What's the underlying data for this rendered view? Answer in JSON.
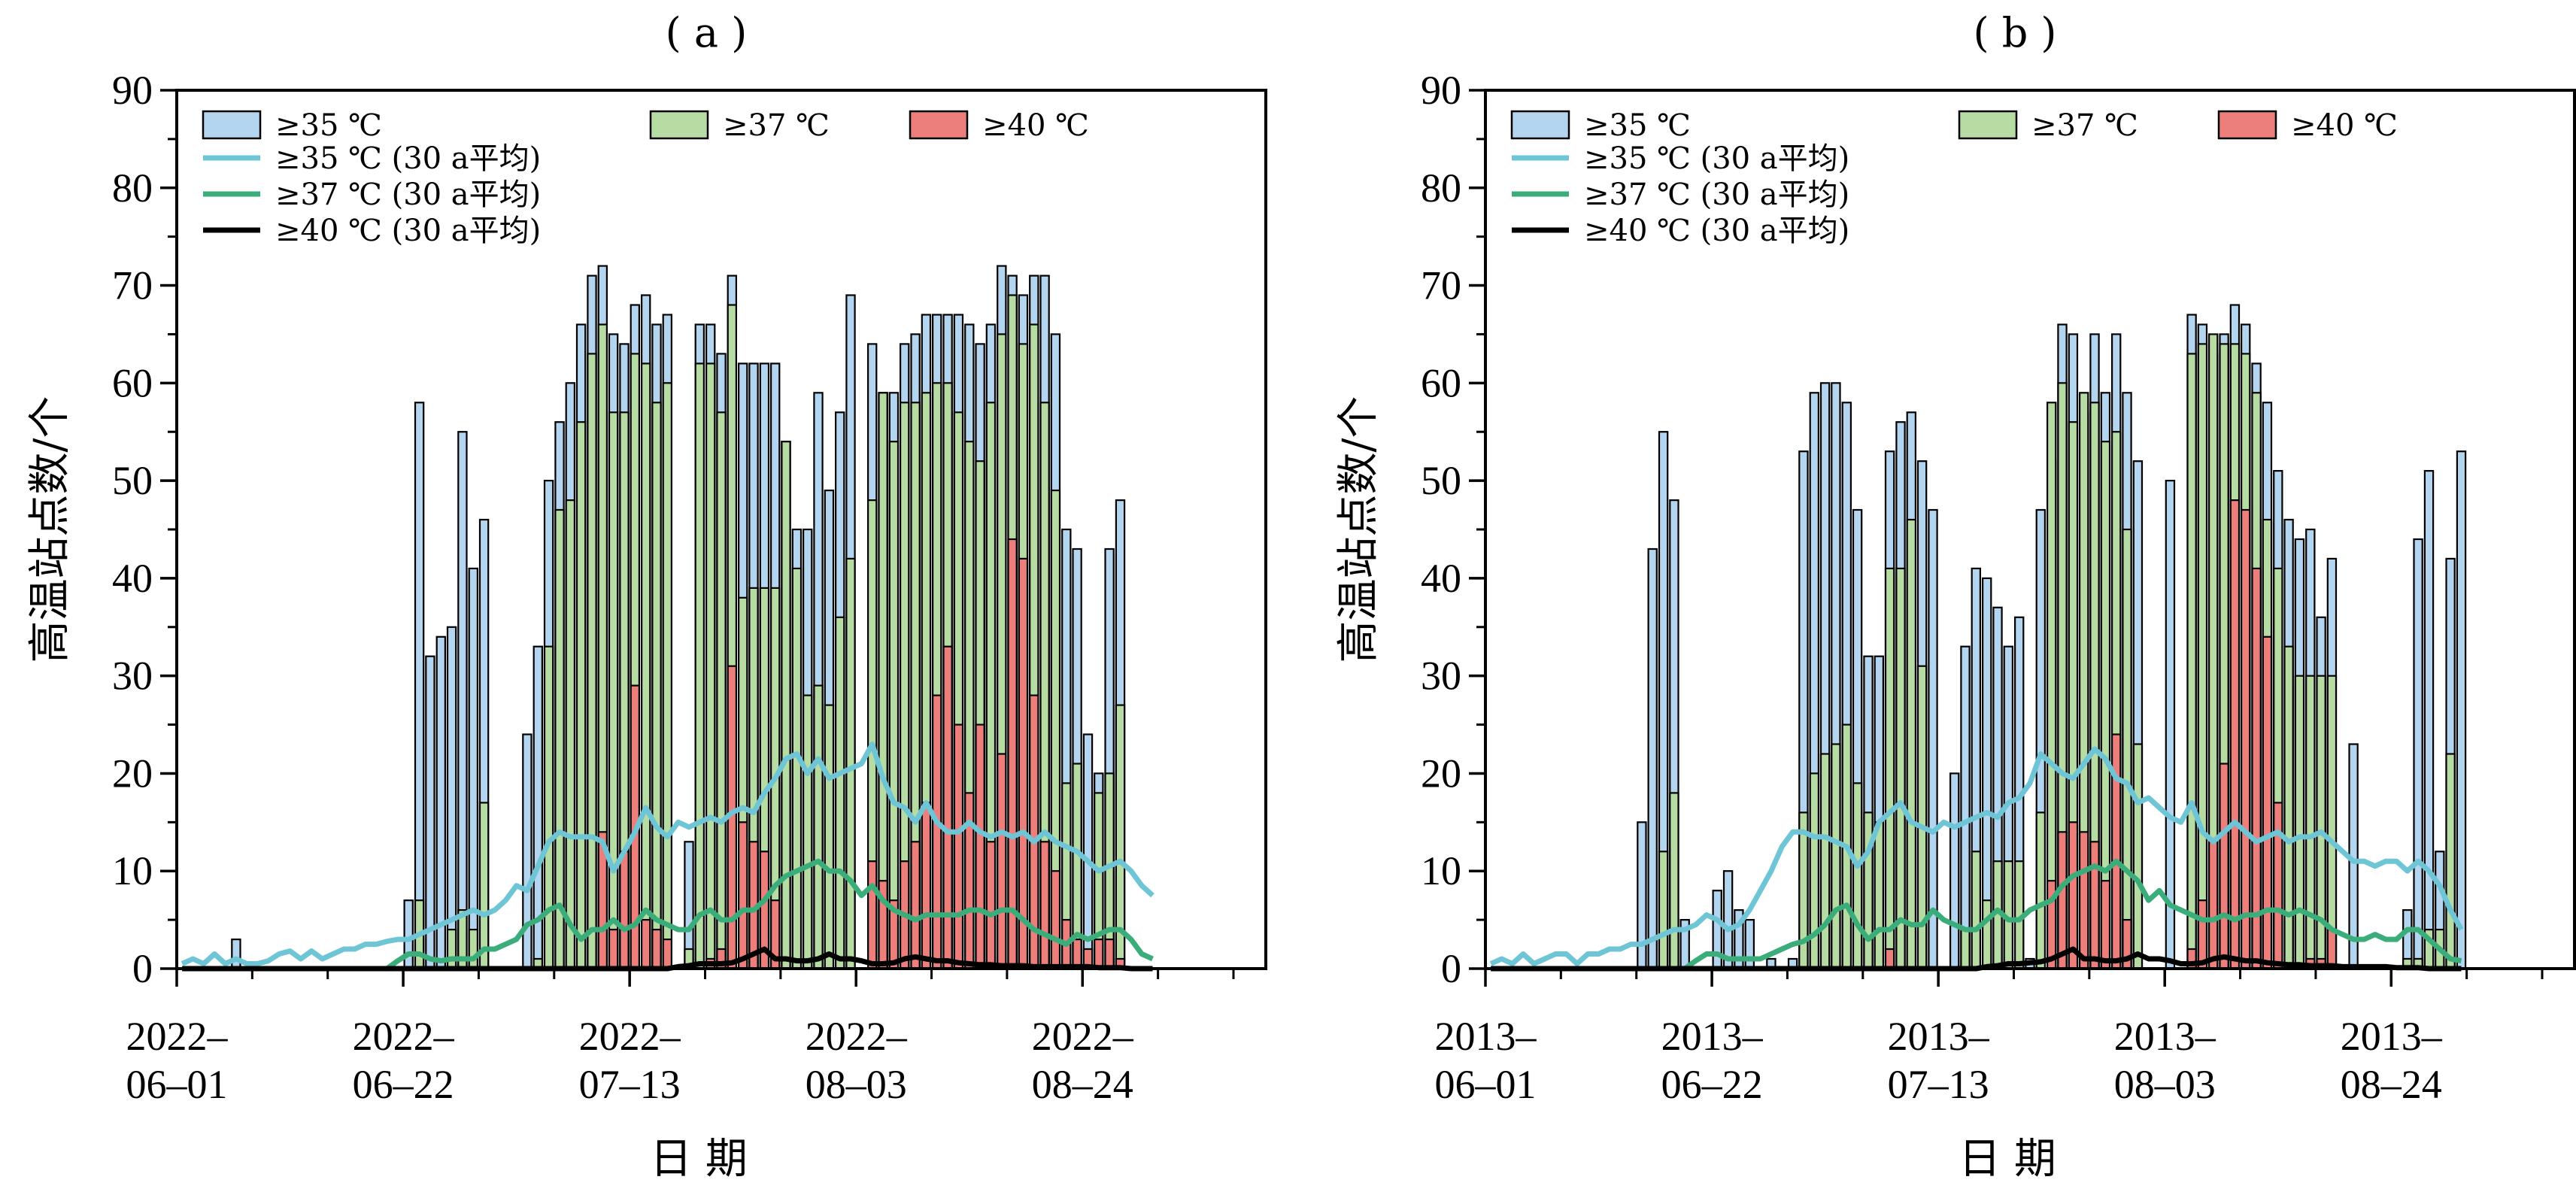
{
  "chart_data": [
    {
      "panel_label": "( a )",
      "type": "bar",
      "xlabel": "日 期",
      "ylabel": "高温站点数/个",
      "ylim": [
        0,
        90
      ],
      "yticks": [
        0,
        10,
        20,
        30,
        40,
        50,
        60,
        70,
        80,
        90
      ],
      "xticks": [
        {
          "day": 0,
          "line1": "2022–",
          "line2": "06–01"
        },
        {
          "day": 21,
          "line1": "2022–",
          "line2": "06–22"
        },
        {
          "day": 42,
          "line1": "2022–",
          "line2": "07–13"
        },
        {
          "day": 63,
          "line1": "2022–",
          "line2": "08–03"
        },
        {
          "day": 84,
          "line1": "2022–",
          "line2": "08–24"
        }
      ],
      "x_start": "2022-06-01",
      "x_end": "2022-08-31",
      "legend": {
        "ge35": "≥35 ℃",
        "ge37": "≥37 ℃",
        "ge40": "≥40 ℃",
        "avg35": "≥35 ℃ (30 a平均)",
        "avg37": "≥37 ℃ (30 a平均)",
        "avg40": "≥40 ℃ (30 a平均)"
      },
      "series": {
        "ge35": [
          0,
          0,
          0,
          0,
          0,
          3,
          0,
          0,
          0,
          0,
          0,
          0,
          0,
          0,
          0,
          0,
          0,
          0,
          0,
          0,
          0,
          7,
          58,
          32,
          34,
          35,
          55,
          41,
          46,
          0,
          0,
          0,
          24,
          33,
          50,
          56,
          60,
          66,
          71,
          72,
          65,
          64,
          68,
          69,
          66,
          67,
          0,
          13,
          66,
          66,
          63,
          71,
          62,
          62,
          62,
          62,
          54,
          45,
          45,
          59,
          49,
          57,
          69,
          0,
          64,
          59,
          59,
          64,
          65,
          67,
          67,
          67,
          67,
          66,
          64,
          66,
          72,
          71,
          69,
          71,
          71,
          65,
          45,
          43,
          24,
          20,
          43,
          48,
          0,
          0,
          0
        ],
        "ge37": [
          0,
          0,
          0,
          0,
          0,
          0,
          0,
          0,
          0,
          0,
          0,
          0,
          0,
          0,
          0,
          0,
          0,
          0,
          0,
          0,
          0,
          0,
          7,
          0,
          0,
          4,
          6,
          4,
          17,
          0,
          0,
          0,
          0,
          1,
          33,
          47,
          48,
          56,
          63,
          66,
          57,
          57,
          63,
          62,
          58,
          60,
          0,
          2,
          62,
          62,
          57,
          68,
          38,
          39,
          39,
          39,
          54,
          41,
          28,
          29,
          27,
          36,
          42,
          0,
          48,
          59,
          54,
          58,
          58,
          59,
          60,
          60,
          57,
          54,
          52,
          58,
          65,
          69,
          64,
          66,
          58,
          49,
          19,
          21,
          0,
          18,
          20,
          27,
          0,
          0,
          0
        ],
        "ge40": [
          0,
          0,
          0,
          0,
          0,
          0,
          0,
          0,
          0,
          0,
          0,
          0,
          0,
          0,
          0,
          0,
          0,
          0,
          0,
          0,
          0,
          0,
          0,
          0,
          0,
          0,
          0,
          0,
          0,
          0,
          0,
          0,
          0,
          0,
          0,
          0,
          0,
          0,
          0,
          14,
          4,
          12,
          29,
          5,
          4,
          3,
          0,
          0,
          0,
          1,
          2,
          31,
          15,
          13,
          12,
          7,
          0,
          0,
          0,
          0,
          0,
          0,
          0,
          0,
          11,
          9,
          7,
          11,
          13,
          17,
          28,
          33,
          25,
          18,
          25,
          13,
          22,
          44,
          42,
          28,
          13,
          10,
          5,
          3,
          2,
          3,
          3,
          1,
          0,
          0,
          0
        ],
        "avg35": [
          0.5,
          1,
          0.5,
          1.5,
          0.5,
          1,
          0.5,
          0.5,
          0.8,
          1.5,
          1.8,
          1,
          1.8,
          1,
          1.5,
          2,
          2,
          2.5,
          2.5,
          2.8,
          3,
          3,
          3.5,
          4,
          4.5,
          5,
          5.5,
          6,
          5.5,
          6,
          7,
          8.5,
          8,
          10.5,
          13,
          14,
          13.5,
          13.5,
          13.5,
          13,
          10,
          12,
          14,
          16.5,
          14.5,
          13.5,
          15,
          14.5,
          15,
          15.5,
          15,
          16,
          16.5,
          16,
          18,
          19.5,
          21.5,
          22,
          20,
          21.5,
          19.5,
          20,
          20.5,
          21,
          23,
          19.5,
          17,
          16.5,
          15,
          17,
          15,
          14,
          14,
          15,
          14,
          13.5,
          14,
          13.5,
          14,
          13,
          14,
          13,
          12.5,
          12,
          11,
          10,
          10.5,
          11,
          10,
          8.5,
          7.5
        ],
        "avg37": [
          0,
          0,
          0,
          0,
          0,
          0,
          0,
          0,
          0,
          0,
          0,
          0,
          0,
          0,
          0,
          0,
          0,
          0,
          0,
          0,
          0.8,
          1.5,
          1.5,
          1,
          0.8,
          1,
          1,
          1,
          2,
          2,
          2.5,
          3,
          4.5,
          5,
          6,
          6.5,
          4.5,
          3,
          4,
          4,
          5,
          4,
          4.5,
          6,
          5,
          4.5,
          4,
          4,
          5.5,
          6,
          5,
          5,
          6,
          6,
          7,
          8.5,
          9.5,
          10,
          10.5,
          11,
          10,
          10,
          9,
          7.5,
          8.5,
          7,
          6,
          5.5,
          5,
          5.5,
          5.5,
          5.5,
          5.5,
          6,
          6,
          5.5,
          6,
          6,
          5,
          4,
          3.5,
          3,
          2.5,
          3.5,
          3,
          3.5,
          4,
          4,
          3,
          1.5,
          1
        ],
        "avg40": [
          0,
          0,
          0,
          0,
          0,
          0,
          0,
          0,
          0,
          0,
          0,
          0,
          0,
          0,
          0,
          0,
          0,
          0,
          0,
          0,
          0,
          0,
          0,
          0,
          0,
          0,
          0,
          0,
          0,
          0,
          0,
          0,
          0,
          0,
          0,
          0,
          0,
          0,
          0,
          0,
          0,
          0,
          0,
          0,
          0,
          0,
          0.2,
          0.3,
          0.5,
          0.5,
          0.5,
          0.6,
          1,
          1.5,
          2,
          1,
          1,
          0.8,
          0.8,
          1,
          1.5,
          1,
          1,
          0.8,
          0.5,
          0.5,
          0.6,
          1,
          1.2,
          1,
          0.8,
          0.8,
          0.6,
          0.5,
          0.4,
          0.4,
          0.3,
          0.3,
          0.3,
          0.2,
          0.2,
          0.2,
          0.2,
          0.2,
          0.2,
          0.1,
          0.1,
          0.1,
          0,
          0,
          0
        ]
      }
    },
    {
      "panel_label": "( b )",
      "type": "bar",
      "xlabel": "日 期",
      "ylabel": "高温站点数/个",
      "ylim": [
        0,
        90
      ],
      "yticks": [
        0,
        10,
        20,
        30,
        40,
        50,
        60,
        70,
        80,
        90
      ],
      "xticks": [
        {
          "day": 0,
          "line1": "2013–",
          "line2": "06–01"
        },
        {
          "day": 21,
          "line1": "2013–",
          "line2": "06–22"
        },
        {
          "day": 42,
          "line1": "2013–",
          "line2": "07–13"
        },
        {
          "day": 63,
          "line1": "2013–",
          "line2": "08–03"
        },
        {
          "day": 84,
          "line1": "2013–",
          "line2": "08–24"
        }
      ],
      "x_start": "2013-06-01",
      "x_end": "2013-08-31",
      "legend": {
        "ge35": "≥35 ℃",
        "ge37": "≥37 ℃",
        "ge40": "≥40 ℃",
        "avg35": "≥35 ℃ (30 a平均)",
        "avg37": "≥37 ℃ (30 a平均)",
        "avg40": "≥40 ℃ (30 a平均)"
      },
      "series": {
        "ge35": [
          0,
          0,
          0,
          0,
          0,
          0,
          0,
          0,
          0,
          0,
          0,
          0,
          0,
          0,
          15,
          43,
          55,
          48,
          5,
          0,
          0,
          8,
          10,
          6,
          5,
          0,
          1,
          0,
          1,
          53,
          59,
          60,
          60,
          58,
          47,
          32,
          32,
          53,
          56,
          57,
          52,
          47,
          0,
          20,
          33,
          41,
          40,
          37,
          33,
          36,
          1,
          47,
          52,
          66,
          65,
          57,
          65,
          59,
          65,
          59,
          52,
          0,
          0,
          50,
          0,
          67,
          66,
          63,
          65,
          68,
          66,
          62,
          58,
          51,
          46,
          44,
          45,
          36,
          42,
          0,
          23,
          0,
          0,
          0,
          0,
          6,
          44,
          51,
          12,
          42,
          53
        ],
        "ge37": [
          0,
          0,
          0,
          0,
          0,
          0,
          0,
          0,
          0,
          0,
          0,
          0,
          0,
          0,
          0,
          0,
          12,
          18,
          0,
          0,
          0,
          0,
          0,
          0,
          0,
          0,
          0,
          0,
          0,
          16,
          20,
          22,
          23,
          25,
          19,
          16,
          15,
          41,
          41,
          46,
          31,
          0,
          0,
          0,
          4,
          12,
          7,
          11,
          11,
          11,
          0,
          16,
          58,
          60,
          56,
          59,
          58,
          54,
          55,
          45,
          23,
          0,
          0,
          0,
          0,
          63,
          64,
          65,
          64,
          64,
          63,
          59,
          46,
          41,
          33,
          30,
          30,
          30,
          30,
          0,
          0,
          0,
          0,
          0,
          0,
          1,
          1,
          4,
          4,
          22,
          0
        ],
        "ge40": [
          0,
          0,
          0,
          0,
          0,
          0,
          0,
          0,
          0,
          0,
          0,
          0,
          0,
          0,
          0,
          0,
          0,
          0,
          0,
          0,
          0,
          0,
          0,
          0,
          0,
          0,
          0,
          0,
          0,
          0,
          0,
          0,
          0,
          0,
          0,
          0,
          0,
          2,
          0,
          0,
          0,
          0,
          0,
          0,
          0,
          0,
          0,
          0,
          0,
          0,
          0,
          0,
          9,
          14,
          15,
          14,
          13,
          9,
          24,
          5,
          0,
          0,
          0,
          0,
          0,
          2,
          7,
          13,
          21,
          48,
          47,
          41,
          34,
          17,
          0,
          0,
          1,
          1,
          4,
          0,
          0,
          0,
          0,
          0,
          0,
          0,
          0,
          0,
          0,
          0,
          0
        ],
        "avg35": [
          0.5,
          1,
          0.5,
          1.5,
          0.5,
          1,
          1.5,
          1.5,
          0.5,
          1.5,
          1.5,
          2,
          2,
          2.5,
          2.5,
          3,
          3.5,
          4,
          4,
          4.5,
          5.5,
          5,
          4,
          4.5,
          6,
          8,
          10,
          12.5,
          14,
          14,
          13.5,
          13.5,
          13,
          12.5,
          10.5,
          12,
          15,
          16,
          17,
          15,
          14.5,
          14,
          15,
          14.5,
          15,
          15.5,
          16,
          15.5,
          17,
          17.5,
          19,
          22,
          21,
          20,
          19.5,
          21,
          22.5,
          21.5,
          19.5,
          19,
          17,
          17.5,
          16.5,
          15.5,
          15,
          17,
          14,
          13,
          14,
          15,
          14,
          13,
          13.5,
          14,
          13,
          13.5,
          13.5,
          14,
          13,
          12,
          11,
          11,
          10.5,
          11,
          11,
          10,
          11,
          10,
          8.5,
          6,
          4
        ],
        "avg37": [
          0,
          0,
          0,
          0,
          0,
          0,
          0,
          0,
          0,
          0,
          0,
          0,
          0,
          0,
          0,
          0,
          0,
          0,
          0,
          0.8,
          1.5,
          1.5,
          1,
          1,
          1,
          1,
          1.5,
          2,
          2.5,
          2.8,
          3.5,
          4.5,
          6,
          6.5,
          4.5,
          3,
          4,
          4,
          5,
          4.5,
          4.5,
          6,
          5,
          4.5,
          4,
          4,
          5,
          6,
          5,
          5,
          6,
          6.5,
          7,
          8.5,
          9.5,
          10,
          10.5,
          10,
          11,
          10,
          9,
          7,
          8,
          6.5,
          6,
          5.5,
          5,
          5,
          5.5,
          5,
          5.5,
          5.5,
          6,
          6,
          5.5,
          6,
          5.5,
          5,
          4,
          3.5,
          3,
          3,
          3.5,
          3,
          3,
          4,
          4,
          3,
          2,
          1,
          0.8
        ],
        "avg40": [
          0,
          0,
          0,
          0,
          0,
          0,
          0,
          0,
          0,
          0,
          0,
          0,
          0,
          0,
          0,
          0,
          0,
          0,
          0,
          0,
          0,
          0,
          0,
          0,
          0,
          0,
          0,
          0,
          0,
          0,
          0,
          0,
          0,
          0,
          0,
          0,
          0,
          0,
          0,
          0,
          0,
          0,
          0,
          0,
          0,
          0,
          0.2,
          0.3,
          0.5,
          0.5,
          0.6,
          0.7,
          1,
          1.5,
          2,
          1,
          1,
          0.8,
          0.8,
          1,
          1.5,
          1,
          1,
          0.8,
          0.5,
          0.5,
          0.6,
          1,
          1.2,
          1,
          0.8,
          0.8,
          0.6,
          0.5,
          0.4,
          0.4,
          0.3,
          0.3,
          0.3,
          0.2,
          0.2,
          0.2,
          0.2,
          0.2,
          0.1,
          0.1,
          0.1,
          0,
          0,
          0,
          0
        ]
      }
    }
  ],
  "colors": {
    "ge35": "#b4d5ef",
    "ge37": "#b7dca3",
    "ge40": "#ec7f7c",
    "avg35": "#6ec5d6",
    "avg37": "#3aad7a",
    "avg40": "#000000",
    "bar_edge": "#000000"
  }
}
